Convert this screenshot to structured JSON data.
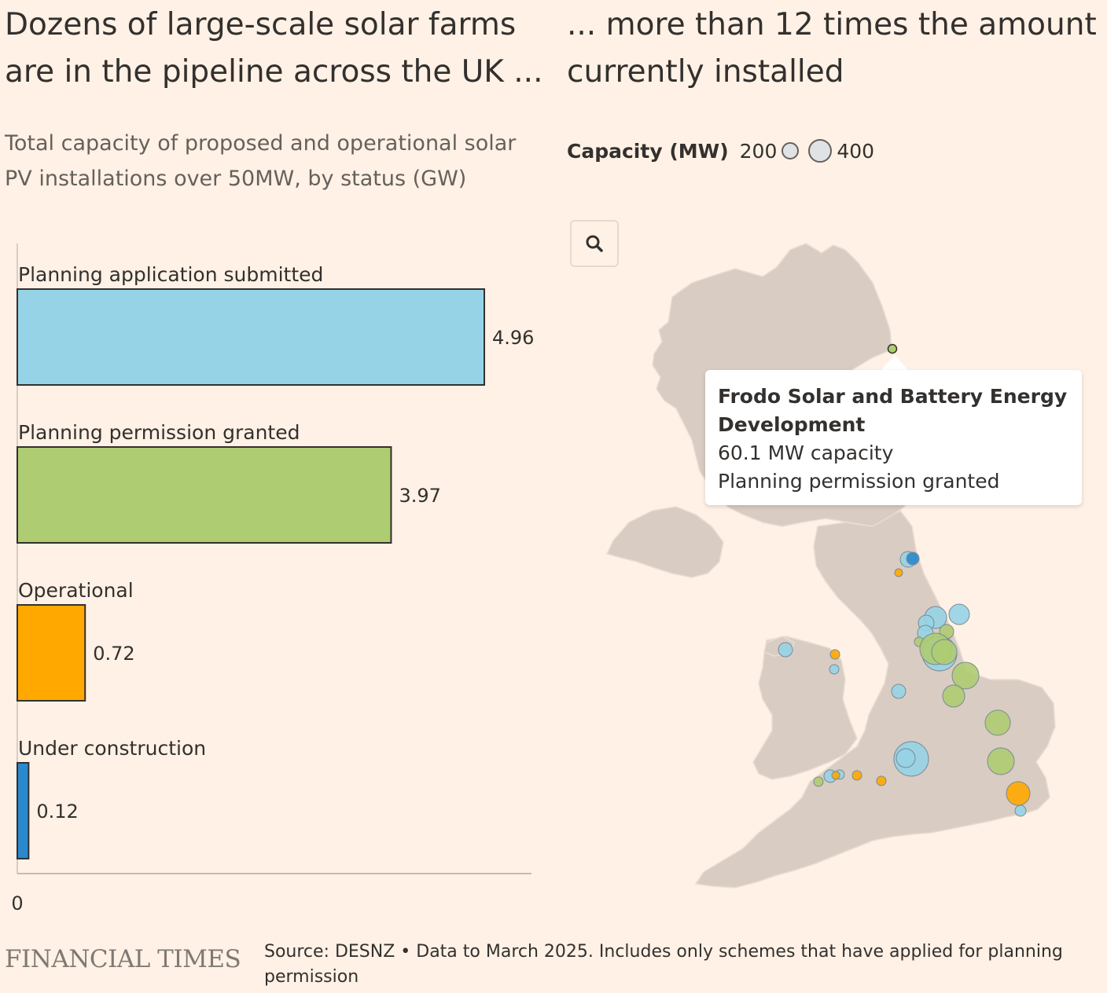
{
  "headline_left": "Dozens of large-scale solar farms are in the pipeline across the UK ...",
  "headline_right": "... more than 12 times the amount currently installed",
  "subtitle": "Total capacity of proposed and operational solar PV installations over 50MW, by status (GW)",
  "size_legend": {
    "title": "Capacity (MW)",
    "small_value": "200",
    "large_value": "400"
  },
  "chart_data": {
    "type": "bar",
    "orientation": "horizontal",
    "title": "Total capacity of proposed and operational solar PV installations over 50MW, by status (GW)",
    "categories": [
      "Planning application submitted",
      "Planning permission granted",
      "Operational",
      "Under construction"
    ],
    "values": [
      4.96,
      3.97,
      0.72,
      0.12
    ],
    "value_labels": [
      "4.96",
      "3.97",
      "0.72",
      "0.12"
    ],
    "colors": [
      "#96D3E6",
      "#AECC72",
      "#FFA900",
      "#2A89CE"
    ],
    "x_ticks": [
      "0"
    ],
    "xlim": [
      0,
      5.5
    ]
  },
  "map": {
    "status_colors": {
      "Planning application submitted": "#96D3E6",
      "Planning permission granted": "#AECC72",
      "Operational": "#FFA900",
      "Under construction": "#2A89CE"
    },
    "land_color": "#D9CCC3",
    "zoom_icon": "search-icon"
  },
  "tooltip": {
    "name": "Frodo Solar and Battery Energy Development",
    "capacity": "60.1 MW capacity",
    "status": "Planning permission granted"
  },
  "footer": {
    "logo": "FINANCIAL TIMES",
    "source": "Source: DESNZ • Data to March 2025. Includes only schemes that have applied for planning permission"
  }
}
